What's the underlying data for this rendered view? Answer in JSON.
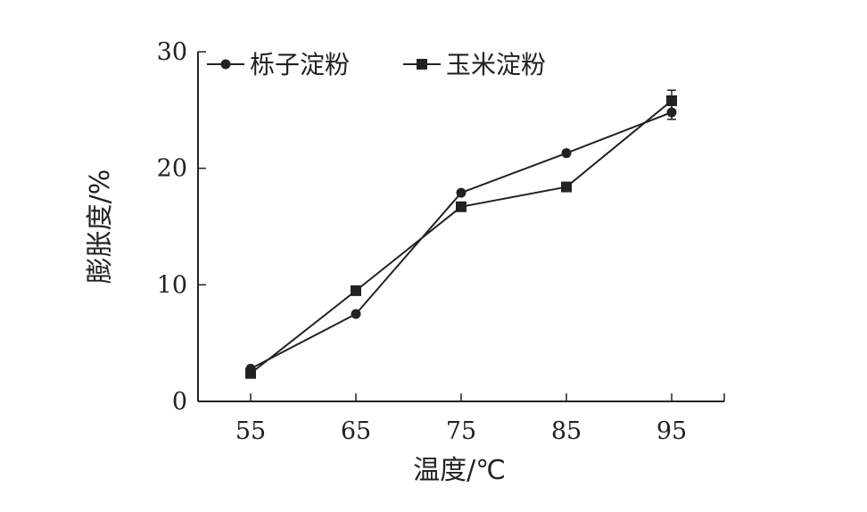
{
  "chart_data": {
    "type": "line",
    "title": "",
    "xlabel": "温度/℃",
    "ylabel": "膨胀度/%",
    "x": [
      55,
      65,
      75,
      85,
      95
    ],
    "xlim": [
      50,
      100
    ],
    "ylim": [
      0,
      30
    ],
    "xticks": [
      55,
      65,
      75,
      85,
      95
    ],
    "yticks": [
      0,
      10,
      20,
      30
    ],
    "grid": false,
    "legend_position": "top-left",
    "series": [
      {
        "name": "栎子淀粉",
        "marker": "circle",
        "values": [
          2.8,
          7.5,
          17.9,
          21.3,
          24.8
        ],
        "errors": [
          0,
          0,
          0,
          0,
          0.6
        ],
        "color": "#222222"
      },
      {
        "name": "玉米淀粉",
        "marker": "square",
        "values": [
          2.4,
          9.5,
          16.7,
          18.4,
          25.8
        ],
        "errors": [
          0,
          0,
          0,
          0,
          0.9
        ],
        "color": "#222222"
      }
    ]
  }
}
